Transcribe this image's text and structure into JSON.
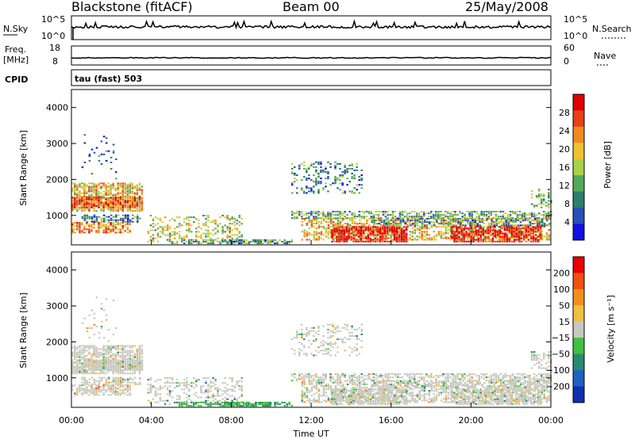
{
  "header": {
    "station": "Blackstone (fitACF)",
    "beam": "Beam 00",
    "date": "25/May/2008"
  },
  "top_panels": {
    "nsky_label": "N.Sky",
    "nsky_ticks": [
      "10^5",
      "10^0"
    ],
    "nsearch_label": "N.Search",
    "nsearch_ticks": [
      "10^5",
      "10^0"
    ],
    "freq_label": "Freq.",
    "freq_unit": "[MHz]",
    "freq_ticks": [
      "18",
      "8"
    ],
    "nave_label": "Nave",
    "nave_ticks": [
      "60",
      "0"
    ],
    "cpid_label": "CPID",
    "cpid_value": "tau (fast) 503"
  },
  "chart_data": [
    {
      "type": "heatmap",
      "name": "power",
      "ylabel": "Slant Range [km]",
      "xlabel": "",
      "yticks": [
        1000,
        2000,
        3000,
        4000
      ],
      "ylim": [
        180,
        4500
      ],
      "colorbar_label": "Power [dB]",
      "colorbar_ticks": [
        "28",
        "24",
        "20",
        "16",
        "12",
        "8",
        "4"
      ],
      "colors": [
        "#1010e0",
        "#2850b8",
        "#2e7d6e",
        "#54a85a",
        "#a8d24a",
        "#f0c030",
        "#f08a20",
        "#e84018",
        "#e00000"
      ]
    },
    {
      "type": "heatmap",
      "name": "velocity",
      "ylabel": "Slant Range [km]",
      "xlabel": "Time UT",
      "xticks": [
        "00:00",
        "04:00",
        "08:00",
        "12:00",
        "16:00",
        "20:00",
        "00:00"
      ],
      "yticks": [
        1000,
        2000,
        3000,
        4000
      ],
      "ylim": [
        180,
        4500
      ],
      "colorbar_label": "Velocity [m s⁻¹]",
      "colorbar_ticks": [
        "200",
        "100",
        "50",
        "15",
        "−15",
        "−50",
        "−100",
        "−200"
      ],
      "colors": [
        "#1030b0",
        "#2060c0",
        "#2a8a70",
        "#40c040",
        "#c8c8c0",
        "#f0c040",
        "#f09020",
        "#f05010",
        "#e80000"
      ]
    }
  ]
}
